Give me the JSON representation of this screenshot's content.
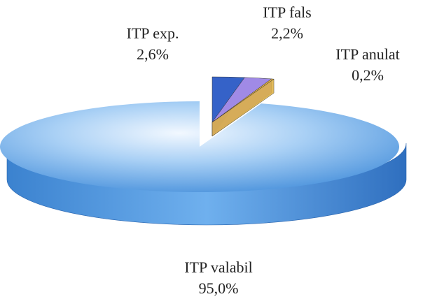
{
  "chart_data": {
    "type": "pie3d",
    "categories": [
      "ITP exp.",
      "ITP fals",
      "ITP anulat",
      "ITP valabil"
    ],
    "values": [
      2.6,
      2.2,
      0.2,
      95.0
    ],
    "value_labels": [
      "2,6%",
      "2,2%",
      "0,2%",
      "95,0%"
    ],
    "colors": [
      "#3562c8",
      "#a08ae6",
      "#ddb040",
      "#4a92dc"
    ]
  }
}
